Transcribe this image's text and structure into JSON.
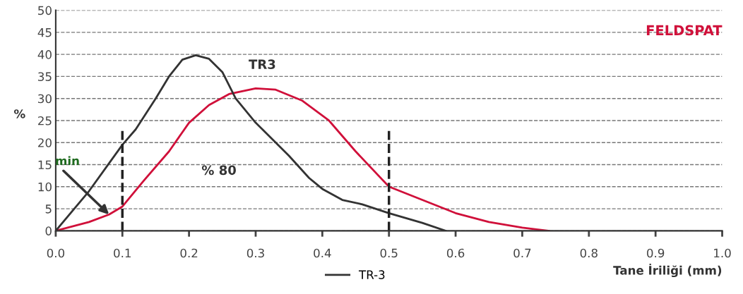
{
  "chart_data": {
    "type": "line",
    "title": "FELDSPAT",
    "xlabel": "Tane İriliği (mm)",
    "ylabel": "%",
    "series": [
      {
        "color": "#d0103a",
        "x": [
          0,
          0.05,
          0.08,
          0.1,
          0.13,
          0.17,
          0.2,
          0.23,
          0.26,
          0.3,
          0.33,
          0.37,
          0.41,
          0.45,
          0.5,
          0.55,
          0.6,
          0.65,
          0.7,
          0.74
        ],
        "values": [
          0,
          2,
          3.7,
          5.5,
          11,
          18,
          24.5,
          28.5,
          31,
          32.3,
          32,
          29.5,
          25,
          18,
          10,
          7,
          4,
          2,
          0.7,
          0
        ]
      },
      {
        "name": "TR-3",
        "color": "#333333",
        "x": [
          0,
          0.05,
          0.1,
          0.12,
          0.15,
          0.17,
          0.19,
          0.21,
          0.23,
          0.25,
          0.27,
          0.3,
          0.35,
          0.38,
          0.4,
          0.43,
          0.46,
          0.5,
          0.55,
          0.585
        ],
        "values": [
          0,
          9,
          19.5,
          23,
          30,
          35,
          38.8,
          39.8,
          39,
          36,
          30,
          24.5,
          17,
          12,
          9.5,
          7,
          6,
          4,
          1.8,
          0
        ]
      }
    ],
    "xlim": [
      0,
      1.0
    ],
    "xticks": [
      {
        "value": 0,
        "label": "0.0"
      },
      0.1,
      0.2,
      0.3,
      0.4,
      0.5,
      0.6,
      0.7,
      0.8,
      0.9,
      {
        "value": 1.0,
        "label": "1.0"
      }
    ],
    "ylim": [
      0,
      50
    ],
    "yticks": [
      0,
      5,
      10,
      15,
      20,
      25,
      30,
      35,
      40,
      45,
      50
    ],
    "grid": "y",
    "legend": "bottom",
    "line_style": "solid",
    "ref_lines": [
      {
        "axis": "x",
        "value": 0.1,
        "color": "#222222",
        "line_style": "dashed"
      },
      {
        "axis": "x",
        "value": 0.5,
        "color": "#222222",
        "line_style": "dashed"
      }
    ],
    "annotations": [
      "TR3",
      "% 80",
      {
        "text": "min",
        "x": 0.08,
        "y": 3.7
      }
    ]
  }
}
